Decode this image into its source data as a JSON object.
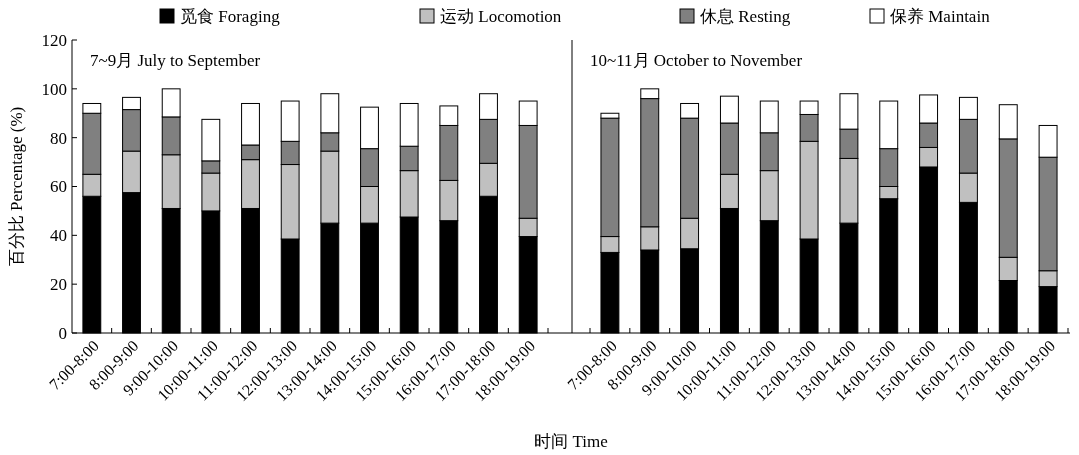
{
  "chart_data": [
    {
      "type": "bar",
      "stacked": true,
      "title": "7~9月 July to September",
      "xlabel": "时间 Time",
      "ylabel": "百分比 Percentage (%)",
      "legend": "top",
      "ylim": [
        0,
        120
      ],
      "yticks": [
        0,
        20,
        40,
        60,
        80,
        100,
        120
      ],
      "categories": [
        "7:00-8:00",
        "8:00-9:00",
        "9:00-10:00",
        "10:00-11:00",
        "11:00-12:00",
        "12:00-13:00",
        "13:00-14:00",
        "14:00-15:00",
        "15:00-16:00",
        "16:00-17:00",
        "17:00-18:00",
        "18:00-19:00"
      ],
      "series": [
        {
          "name": "觅食 Foraging",
          "color": "#000000",
          "values": [
            56,
            57.5,
            51,
            50,
            51,
            38.5,
            45,
            45,
            47.5,
            46,
            56,
            39.5
          ]
        },
        {
          "name": "运动 Locomotion",
          "color": "#c0c0c0",
          "values": [
            9,
            17,
            22,
            15.5,
            20,
            30.5,
            29.5,
            15,
            19,
            16.5,
            13.5,
            7.5
          ]
        },
        {
          "name": "休息 Resting",
          "color": "#808080",
          "values": [
            25,
            17,
            15.5,
            5,
            6,
            9.5,
            7.5,
            15.5,
            10,
            22.5,
            18,
            38
          ]
        },
        {
          "name": "保养 Maintain",
          "color": "#ffffff",
          "values": [
            4,
            5,
            11.5,
            17,
            17,
            16.5,
            16,
            17,
            17.5,
            8,
            10.5,
            10
          ]
        }
      ]
    },
    {
      "type": "bar",
      "stacked": true,
      "title": "10~11月 October to November",
      "ylim": [
        0,
        120
      ],
      "tick_labels": "x",
      "categories": [
        "7:00-8:00",
        "8:00-9:00",
        "9:00-10:00",
        "10:00-11:00",
        "11:00-12:00",
        "12:00-13:00",
        "13:00-14:00",
        "14:00-15:00",
        "15:00-16:00",
        "16:00-17:00",
        "17:00-18:00",
        "18:00-19:00"
      ],
      "series": [
        {
          "color": "#000000",
          "values": [
            33,
            34,
            34.5,
            51,
            46,
            38.5,
            45,
            55,
            68,
            53.5,
            21.5,
            19
          ]
        },
        {
          "color": "#c0c0c0",
          "values": [
            6.5,
            9.5,
            12.5,
            14,
            20.5,
            40,
            26.5,
            5,
            8,
            12,
            9.5,
            6.5
          ]
        },
        {
          "color": "#808080",
          "values": [
            48.5,
            52.5,
            41,
            21,
            15.5,
            11,
            12,
            15.5,
            10,
            22,
            48.5,
            46.5
          ]
        },
        {
          "color": "#ffffff",
          "values": [
            2,
            4,
            6,
            11,
            13,
            5.5,
            14.5,
            19.5,
            11.5,
            9,
            14,
            13
          ]
        }
      ]
    }
  ]
}
